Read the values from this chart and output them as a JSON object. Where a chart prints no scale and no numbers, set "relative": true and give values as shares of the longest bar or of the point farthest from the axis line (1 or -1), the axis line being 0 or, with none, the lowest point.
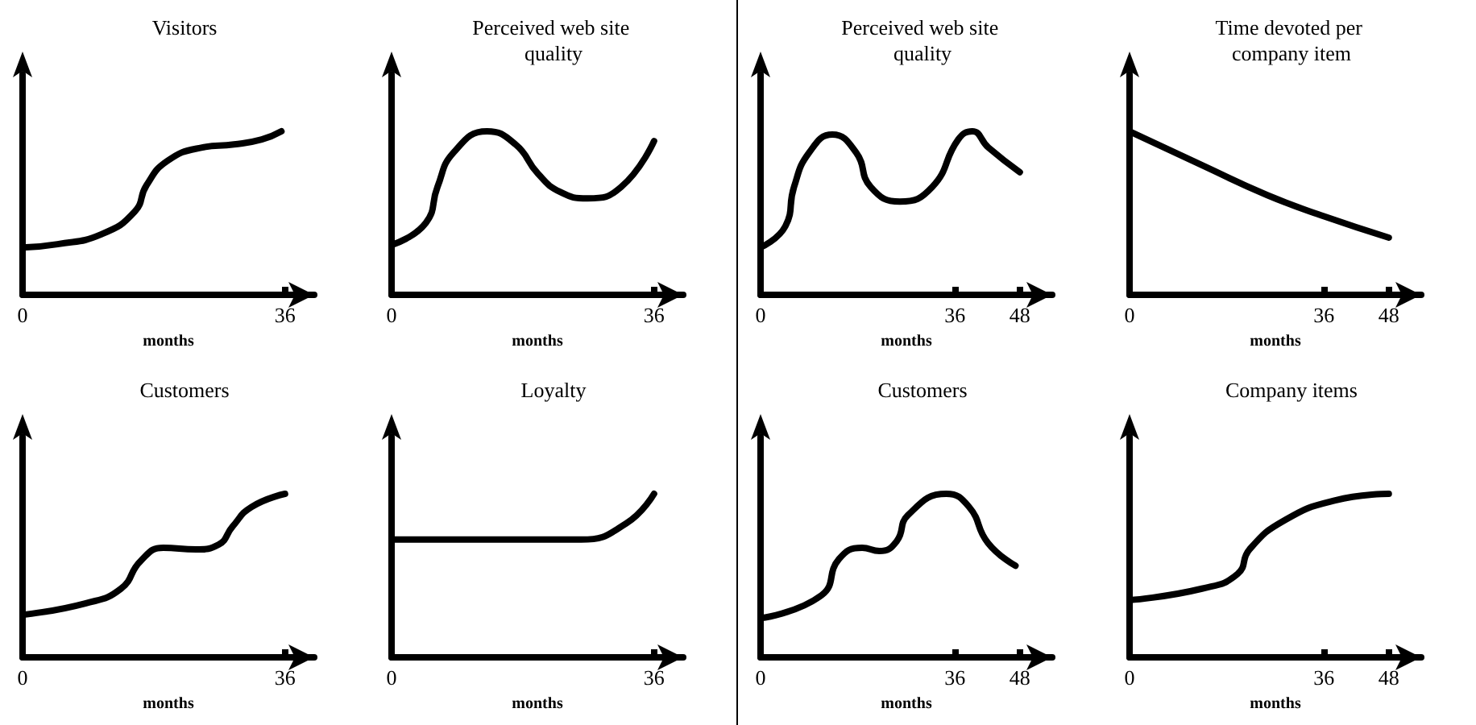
{
  "chart_data": [
    {
      "type": "line",
      "title": "Visitors",
      "xlabel": "months",
      "relative": true,
      "xlim": [
        0,
        40
      ],
      "xticks": [
        0,
        36
      ],
      "grid": false,
      "marker": "none",
      "line_style": "solid",
      "series": [
        {
          "color": "#000000",
          "x": [
            0,
            4.8,
            10.8,
            15.4,
            17,
            19.9,
            24.5,
            29,
            32.8,
            35.5
          ],
          "values": [
            0.29,
            0.31,
            0.37,
            0.51,
            0.67,
            0.82,
            0.9,
            0.92,
            0.95,
            1
          ]
        }
      ]
    },
    {
      "type": "line",
      "title": "Perceived web site quality",
      "xlabel": "months",
      "relative": true,
      "xlim": [
        0,
        40
      ],
      "xticks": [
        0,
        36
      ],
      "grid": false,
      "marker": "none",
      "line_style": "solid",
      "series": [
        {
          "color": "#000000",
          "x": [
            0.3,
            4.7,
            6.3,
            8.5,
            13.1,
            17,
            20.1,
            23.1,
            26.9,
            31.5,
            36
          ],
          "values": [
            0.31,
            0.44,
            0.66,
            0.87,
            1,
            0.92,
            0.74,
            0.63,
            0.59,
            0.66,
            0.94
          ]
        }
      ]
    },
    {
      "type": "line",
      "title": "Perceived web site quality",
      "xlabel": "months",
      "relative": true,
      "xlim": [
        0,
        54
      ],
      "xticks": [
        0,
        36,
        48
      ],
      "grid": false,
      "marker": "none",
      "line_style": "solid",
      "series": [
        {
          "color": "#000000",
          "x": [
            0,
            4.6,
            6.2,
            9,
            13.3,
            17.7,
            20.4,
            25.8,
            31.8,
            36.6,
            39.2,
            42.2,
            48
          ],
          "values": [
            0.29,
            0.42,
            0.66,
            0.87,
            0.98,
            0.87,
            0.66,
            0.57,
            0.66,
            0.95,
            1,
            0.9,
            0.75
          ]
        }
      ]
    },
    {
      "type": "line",
      "title": "Time devoted per company item",
      "xlabel": "months",
      "relative": true,
      "xlim": [
        0,
        54
      ],
      "xticks": [
        0,
        36,
        48
      ],
      "grid": false,
      "marker": "none",
      "line_style": "solid",
      "series": [
        {
          "color": "#000000",
          "x": [
            0,
            13.6,
            25.5,
            36,
            48
          ],
          "values": [
            1,
            0.79,
            0.61,
            0.48,
            0.35
          ]
        }
      ]
    },
    {
      "type": "line",
      "title": "Customers",
      "xlabel": "months",
      "relative": true,
      "xlim": [
        0,
        40
      ],
      "xticks": [
        0,
        36
      ],
      "grid": false,
      "marker": "none",
      "line_style": "solid",
      "series": [
        {
          "color": "#000000",
          "x": [
            0,
            8.6,
            13.5,
            16.2,
            19.3,
            23.8,
            26.9,
            28.8,
            31.4,
            36
          ],
          "values": [
            0.26,
            0.33,
            0.42,
            0.59,
            0.67,
            0.66,
            0.69,
            0.8,
            0.92,
            1
          ]
        }
      ]
    },
    {
      "type": "line",
      "title": "Loyalty",
      "xlabel": "months",
      "relative": true,
      "xlim": [
        0,
        40
      ],
      "xticks": [
        0,
        36
      ],
      "grid": false,
      "marker": "none",
      "line_style": "solid",
      "series": [
        {
          "color": "#000000",
          "x": [
            0,
            13,
            26,
            32.2,
            36
          ],
          "values": [
            0.72,
            0.72,
            0.72,
            0.82,
            1
          ]
        }
      ]
    },
    {
      "type": "line",
      "title": "Customers",
      "xlabel": "months",
      "relative": true,
      "xlim": [
        0,
        54
      ],
      "xticks": [
        0,
        36,
        48
      ],
      "grid": false,
      "marker": "none",
      "line_style": "solid",
      "series": [
        {
          "color": "#000000",
          "x": [
            0,
            11.3,
            14.5,
            18.8,
            22,
            25.2,
            27.3,
            34.4,
            38.6,
            42.1,
            47.2
          ],
          "values": [
            0.24,
            0.38,
            0.6,
            0.67,
            0.65,
            0.71,
            0.87,
            1,
            0.92,
            0.7,
            0.56
          ]
        }
      ]
    },
    {
      "type": "line",
      "title": "Company items",
      "xlabel": "months",
      "relative": true,
      "xlim": [
        0,
        54
      ],
      "xticks": [
        0,
        36,
        48
      ],
      "grid": false,
      "marker": "none",
      "line_style": "solid",
      "series": [
        {
          "color": "#000000",
          "x": [
            0,
            13.4,
            20,
            22.2,
            28.8,
            38.1,
            48
          ],
          "values": [
            0.35,
            0.42,
            0.51,
            0.66,
            0.84,
            0.96,
            1
          ]
        }
      ]
    }
  ]
}
